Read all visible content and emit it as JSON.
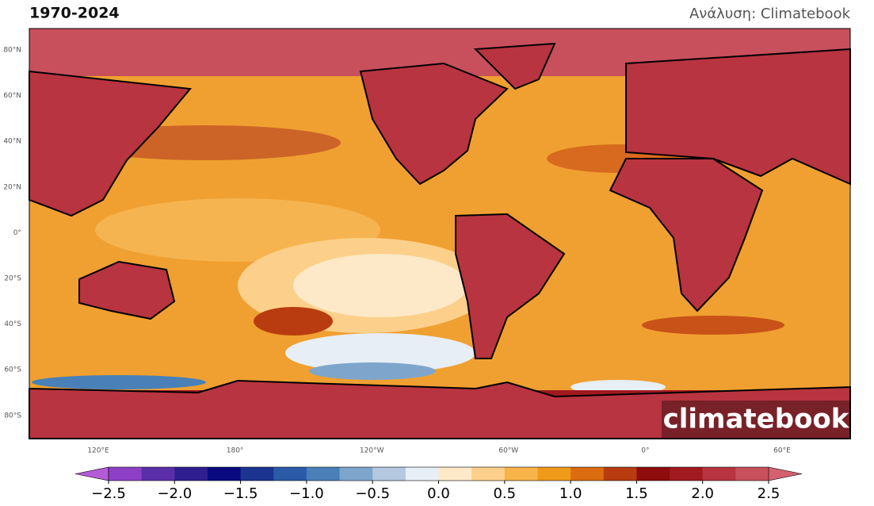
{
  "title": "1970-2024",
  "credit": "Ανάλυση: Climatebook",
  "watermark": "climatebook",
  "map": {
    "lat_labels": [
      "80°N",
      "60°N",
      "40°N",
      "20°N",
      "0°",
      "20°S",
      "40°S",
      "60°S",
      "80°S"
    ],
    "lon_labels": [
      "120°E",
      "180°",
      "120°W",
      "60°W",
      "0°",
      "60°E"
    ]
  },
  "colorbar": {
    "lim": [
      -2.5,
      2.5
    ],
    "ticks": [
      {
        "value": -2.5,
        "label": "−2.5"
      },
      {
        "value": -2,
        "label": "−2.0"
      },
      {
        "value": -1.5,
        "label": "−1.5"
      },
      {
        "value": -1,
        "label": "−1.0"
      },
      {
        "value": -0.5,
        "label": "−0.5"
      },
      {
        "value": 0,
        "label": "0.0"
      },
      0.5,
      {
        "value": 1,
        "label": "1.0"
      },
      1.5,
      {
        "value": 2,
        "label": "2.0"
      },
      2.5
    ],
    "colors": [
      "#8e3fc8",
      "#5a2ea8",
      "#2e1e90",
      "#0a0a80",
      "#1a3490",
      "#2a5aa8",
      "#4a80b8",
      "#7ea6cc",
      "#b4c8e0",
      "#e8eef6",
      "#fde8c8",
      "#fcd08a",
      "#f8b448",
      "#f09a1a",
      "#dc6c10",
      "#b83c10",
      "#8e0c0c",
      "#a01a20",
      "#b83440",
      "#c8505c"
    ],
    "under_color": "#b45cd8",
    "over_color": "#d46070"
  }
}
